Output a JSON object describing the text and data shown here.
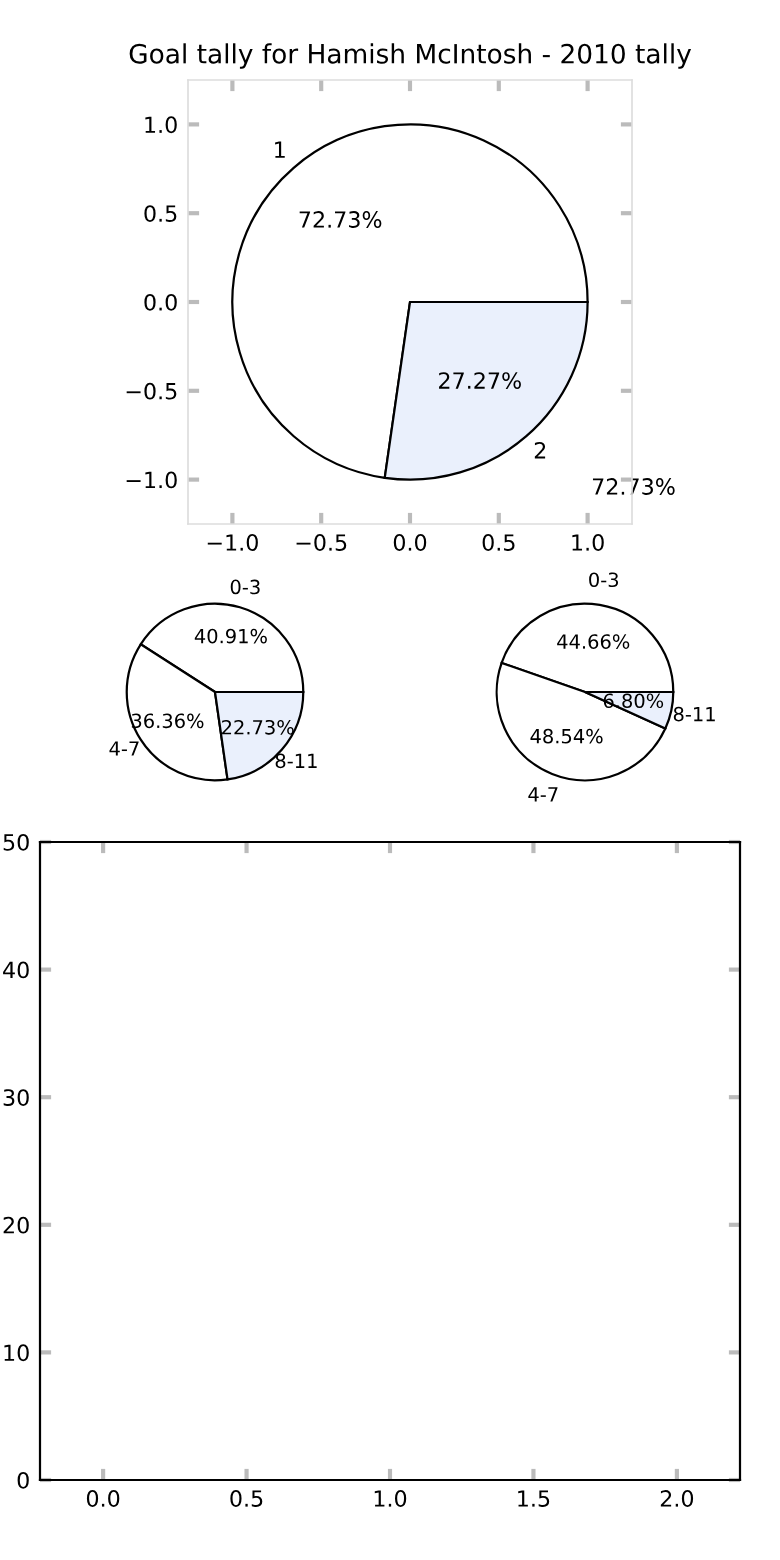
{
  "chart_data": [
    {
      "type": "pie",
      "title": "Goal tally for Hamish McIntosh - 2010 tally",
      "categories": [
        "1",
        "2"
      ],
      "values": [
        72.73,
        27.27
      ],
      "colors": [
        "#ffffff",
        "#eaf0fc"
      ],
      "value_labels": [
        "72.73%",
        "27.27%"
      ],
      "annotations": [
        "72.73%"
      ]
    },
    {
      "type": "scatter",
      "xlim": [
        -1.25,
        1.25
      ],
      "ylim": [
        -1.25,
        1.25
      ],
      "xticks": [
        {
          "value": -1.0,
          "label": "−1.0"
        },
        {
          "value": -0.5,
          "label": "−0.5"
        },
        {
          "value": 0.0,
          "label": "0.0"
        },
        {
          "value": 0.5,
          "label": "0.5"
        },
        {
          "value": 1.0,
          "label": "1.0"
        }
      ],
      "yticks": [
        {
          "value": -1.0,
          "label": "−1.0"
        },
        {
          "value": -0.5,
          "label": "−0.5"
        },
        {
          "value": 0.0,
          "label": "0.0"
        },
        {
          "value": 0.5,
          "label": "0.5"
        },
        {
          "value": 1.0,
          "label": "1.0"
        }
      ]
    },
    {
      "type": "pie",
      "categories": [
        "0-3",
        "4-7",
        "8-11"
      ],
      "values": [
        40.91,
        36.36,
        22.73
      ],
      "colors": [
        "#ffffff",
        "#ffffff",
        "#eaf0fc"
      ],
      "value_labels": [
        "40.91%",
        "36.36%",
        "22.73%"
      ]
    },
    {
      "type": "pie",
      "categories": [
        "0-3",
        "4-7",
        "8-11"
      ],
      "values": [
        44.66,
        48.54,
        6.8
      ],
      "colors": [
        "#ffffff",
        "#ffffff",
        "#eaf0fc"
      ],
      "value_labels": [
        "44.66%",
        "48.54%",
        "6.80%"
      ]
    },
    {
      "type": "scatter",
      "xlim": [
        -0.22,
        2.22
      ],
      "ylim": [
        0,
        50
      ],
      "xticks": [
        {
          "value": 0.0,
          "label": "0.0"
        },
        0.5,
        {
          "value": 1.0,
          "label": "1.0"
        },
        1.5,
        {
          "value": 2.0,
          "label": "2.0"
        }
      ],
      "yticks": [
        0,
        10,
        20,
        30,
        40,
        50
      ]
    }
  ]
}
